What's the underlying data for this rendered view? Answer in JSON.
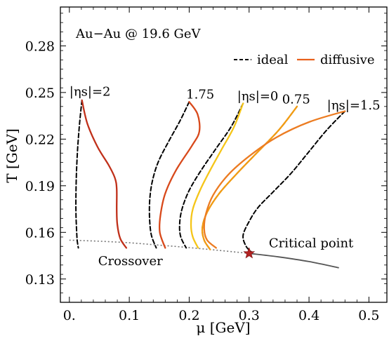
{
  "chart_data": {
    "type": "line",
    "title": "Au−Au @ 19.6 GeV",
    "xlabel": "μ [GeV]",
    "ylabel": "T [GeV]",
    "xlim": [
      -0.015,
      0.53
    ],
    "ylim": [
      0.115,
      0.305
    ],
    "xticks": [
      0.0,
      0.1,
      0.2,
      0.3,
      0.4,
      0.5
    ],
    "xtick_labels": [
      "0.",
      "0.1",
      "0.2",
      "0.3",
      "0.4",
      "0.5"
    ],
    "yticks": [
      0.13,
      0.16,
      0.19,
      0.22,
      0.25,
      0.28
    ],
    "ytick_labels": [
      "0.13",
      "0.16",
      "0.19",
      "0.22",
      "0.25",
      "0.28"
    ],
    "grid": false,
    "legend": {
      "placement": "top-right",
      "entries": [
        {
          "label": "ideal",
          "style": "dashed",
          "color": "#000000"
        },
        {
          "label": "diffusive",
          "style": "solid",
          "color": "#e8601c"
        }
      ]
    },
    "annotations": [
      {
        "text": "|ηs|=2",
        "x": 0.0,
        "y": 0.248
      },
      {
        "text": "1.75",
        "x": 0.195,
        "y": 0.246
      },
      {
        "text": "|ηs|=0",
        "x": 0.28,
        "y": 0.245
      },
      {
        "text": "0.75",
        "x": 0.355,
        "y": 0.243
      },
      {
        "text": "|ηs|=1.5",
        "x": 0.43,
        "y": 0.239
      },
      {
        "text": "Critical point",
        "x": 0.333,
        "y": 0.1505
      },
      {
        "text": "Crossover",
        "x": 0.048,
        "y": 0.139
      }
    ],
    "critical_point": {
      "x": 0.3,
      "y": 0.1465,
      "marker": "star",
      "color": "#b22222"
    },
    "phase_boundary": {
      "crossover": {
        "style": "dotted",
        "color": "#777777",
        "x": [
          0.0,
          0.05,
          0.1,
          0.15,
          0.2,
          0.25,
          0.3
        ],
        "y": [
          0.155,
          0.1543,
          0.1533,
          0.1518,
          0.1502,
          0.1484,
          0.1465
        ]
      },
      "first_order": {
        "style": "solid",
        "color": "#555555",
        "x": [
          0.3,
          0.35,
          0.4,
          0.45
        ],
        "y": [
          0.1465,
          0.1442,
          0.1412,
          0.1372
        ]
      }
    },
    "series": [
      {
        "eta_s": "2",
        "kind": "ideal",
        "color": "#000000",
        "x": [
          0.021,
          0.017,
          0.014,
          0.012,
          0.011,
          0.011,
          0.012,
          0.013,
          0.015
        ],
        "y": [
          0.245,
          0.23,
          0.215,
          0.2,
          0.185,
          0.172,
          0.162,
          0.155,
          0.15
        ]
      },
      {
        "eta_s": "2",
        "kind": "diffusive",
        "color": "#c0301a",
        "x": [
          0.021,
          0.03,
          0.047,
          0.066,
          0.076,
          0.079,
          0.079,
          0.08,
          0.085,
          0.095
        ],
        "y": [
          0.245,
          0.23,
          0.215,
          0.203,
          0.195,
          0.188,
          0.175,
          0.165,
          0.156,
          0.15
        ]
      },
      {
        "eta_s": "1.75",
        "kind": "ideal",
        "color": "#000000",
        "x": [
          0.2,
          0.185,
          0.165,
          0.148,
          0.138,
          0.134,
          0.134,
          0.137,
          0.145
        ],
        "y": [
          0.244,
          0.232,
          0.218,
          0.205,
          0.192,
          0.18,
          0.168,
          0.158,
          0.15
        ]
      },
      {
        "eta_s": "1.75",
        "kind": "diffusive",
        "color": "#d8491b",
        "x": [
          0.2,
          0.214,
          0.217,
          0.205,
          0.178,
          0.16,
          0.152,
          0.151,
          0.16
        ],
        "y": [
          0.244,
          0.236,
          0.225,
          0.216,
          0.2,
          0.185,
          0.171,
          0.16,
          0.15
        ]
      },
      {
        "eta_s": "0",
        "kind": "ideal",
        "color": "#000000",
        "x": [
          0.29,
          0.27,
          0.245,
          0.22,
          0.2,
          0.188,
          0.184,
          0.186,
          0.195
        ],
        "y": [
          0.243,
          0.228,
          0.214,
          0.2,
          0.187,
          0.175,
          0.165,
          0.157,
          0.15
        ]
      },
      {
        "eta_s": "0",
        "kind": "diffusive",
        "color": "#f5c518",
        "x": [
          0.29,
          0.275,
          0.255,
          0.235,
          0.218,
          0.206,
          0.203,
          0.206,
          0.215
        ],
        "y": [
          0.243,
          0.228,
          0.214,
          0.2,
          0.187,
          0.175,
          0.165,
          0.157,
          0.15
        ]
      },
      {
        "eta_s": "0.75",
        "kind": "ideal",
        "color": "#000000",
        "x": [
          0.38,
          0.35,
          0.315,
          0.28,
          0.25,
          0.23,
          0.222,
          0.225,
          0.235
        ],
        "y": [
          0.241,
          0.226,
          0.212,
          0.198,
          0.185,
          0.173,
          0.163,
          0.155,
          0.149
        ]
      },
      {
        "eta_s": "0.75",
        "kind": "diffusive",
        "color": "#f39c12",
        "x": [
          0.38,
          0.35,
          0.315,
          0.28,
          0.25,
          0.23,
          0.222,
          0.225,
          0.235
        ],
        "y": [
          0.241,
          0.226,
          0.212,
          0.198,
          0.185,
          0.173,
          0.163,
          0.155,
          0.149
        ]
      },
      {
        "eta_s": "1.5",
        "kind": "ideal",
        "color": "#000000",
        "x": [
          0.46,
          0.43,
          0.4,
          0.37,
          0.34,
          0.315,
          0.3,
          0.29,
          0.295,
          0.305
        ],
        "y": [
          0.238,
          0.226,
          0.212,
          0.198,
          0.186,
          0.176,
          0.167,
          0.158,
          0.151,
          0.147
        ]
      },
      {
        "eta_s": "1.5",
        "kind": "diffusive",
        "color": "#ec7c22",
        "x": [
          0.46,
          0.4,
          0.345,
          0.3,
          0.265,
          0.24,
          0.228,
          0.225,
          0.23,
          0.245
        ],
        "y": [
          0.238,
          0.231,
          0.221,
          0.209,
          0.197,
          0.184,
          0.172,
          0.162,
          0.155,
          0.15
        ]
      }
    ]
  }
}
